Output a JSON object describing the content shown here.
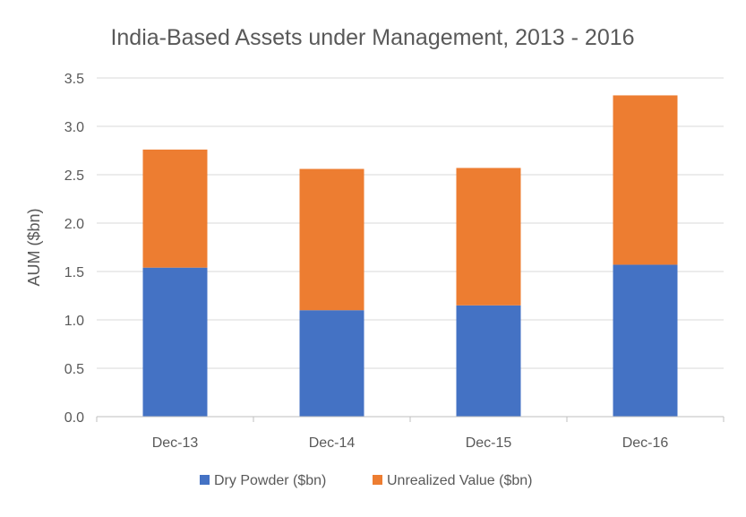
{
  "chart_data": {
    "type": "bar",
    "stacked": true,
    "title": "India-Based Assets under Management, 2013 - 2016",
    "xlabel": "",
    "ylabel": "AUM ($bn)",
    "ylim": [
      0,
      3.5
    ],
    "yticks": [
      "0.0",
      "0.5",
      "1.0",
      "1.5",
      "2.0",
      "2.5",
      "3.0",
      "3.5"
    ],
    "ytick_values": [
      0,
      0.5,
      1.0,
      1.5,
      2.0,
      2.5,
      3.0,
      3.5
    ],
    "grid": true,
    "legend_position": "bottom",
    "categories": [
      "Dec-13",
      "Dec-14",
      "Dec-15",
      "Dec-16"
    ],
    "series": [
      {
        "name": "Dry Powder ($bn)",
        "color": "#4472c4",
        "values": [
          1.54,
          1.1,
          1.15,
          1.57
        ]
      },
      {
        "name": "Unrealized Value ($bn)",
        "color": "#ed7d31",
        "values": [
          1.22,
          1.46,
          1.42,
          1.75
        ]
      }
    ]
  }
}
